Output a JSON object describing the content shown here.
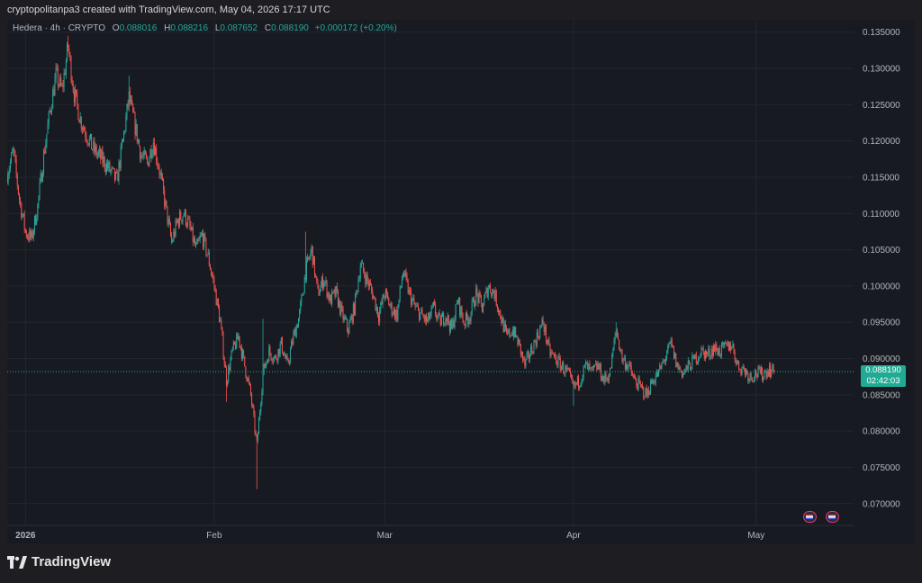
{
  "header": {
    "attribution": "cryptopolitanpa3 created with TradingView.com, May 04, 2026 17:17 UTC"
  },
  "legend": {
    "symbol": "Hedera · 4h · CRYPTO",
    "o_label": "O",
    "o_value": "0.088016",
    "h_label": "H",
    "h_value": "0.088216",
    "l_label": "L",
    "l_value": "0.087652",
    "c_label": "C",
    "c_value": "0.088190",
    "change": "+0.000172 (+0.20%)"
  },
  "price_tag": {
    "price": "0.088190",
    "countdown": "02:42:03"
  },
  "footer": {
    "brand": "TradingView"
  },
  "colors": {
    "up": "#26a69a",
    "down": "#ef5350",
    "background": "#171a21",
    "grid": "#23262f",
    "price_line": "#22ab94"
  },
  "chart_data": {
    "type": "candlestick",
    "symbol": "Hedera",
    "interval": "4h",
    "ylim": [
      0.067,
      0.1367
    ],
    "y_ticks": [
      "0.135000",
      "0.130000",
      "0.125000",
      "0.120000",
      "0.115000",
      "0.110000",
      "0.105000",
      "0.100000",
      "0.095000",
      "0.090000",
      "0.085000",
      "0.080000",
      "0.075000",
      "0.070000"
    ],
    "x_ticks": [
      {
        "label": "2026",
        "date": "2026-01-01"
      },
      {
        "label": "Feb",
        "date": "2026-02-01"
      },
      {
        "label": "Mar",
        "date": "2026-03-01"
      },
      {
        "label": "Apr",
        "date": "2026-04-01"
      },
      {
        "label": "May",
        "date": "2026-05-01"
      }
    ],
    "xlim": [
      "2025-12-29",
      "2026-05-17"
    ],
    "last_date": "2026-05-04",
    "last_price": 0.08819,
    "close_path": [
      {
        "date": "2025-12-29",
        "price": 0.1155
      },
      {
        "date": "2025-12-30",
        "price": 0.1185
      },
      {
        "date": "2025-12-31",
        "price": 0.112
      },
      {
        "date": "2026-01-01",
        "price": 0.1075
      },
      {
        "date": "2026-01-02",
        "price": 0.1065
      },
      {
        "date": "2026-01-03",
        "price": 0.111
      },
      {
        "date": "2026-01-04",
        "price": 0.118
      },
      {
        "date": "2026-01-05",
        "price": 0.124
      },
      {
        "date": "2026-01-06",
        "price": 0.129
      },
      {
        "date": "2026-01-07",
        "price": 0.127
      },
      {
        "date": "2026-01-08",
        "price": 0.133
      },
      {
        "date": "2026-01-09",
        "price": 0.1265
      },
      {
        "date": "2026-01-10",
        "price": 0.123
      },
      {
        "date": "2026-01-12",
        "price": 0.119
      },
      {
        "date": "2026-01-14",
        "price": 0.117
      },
      {
        "date": "2026-01-16",
        "price": 0.1145
      },
      {
        "date": "2026-01-17",
        "price": 0.12
      },
      {
        "date": "2026-01-18",
        "price": 0.126
      },
      {
        "date": "2026-01-19",
        "price": 0.122
      },
      {
        "date": "2026-01-20",
        "price": 0.118
      },
      {
        "date": "2026-01-21",
        "price": 0.117
      },
      {
        "date": "2026-01-22",
        "price": 0.12
      },
      {
        "date": "2026-01-23",
        "price": 0.116
      },
      {
        "date": "2026-01-24",
        "price": 0.111
      },
      {
        "date": "2026-01-25",
        "price": 0.106
      },
      {
        "date": "2026-01-26",
        "price": 0.109
      },
      {
        "date": "2026-01-27",
        "price": 0.11
      },
      {
        "date": "2026-01-28",
        "price": 0.108
      },
      {
        "date": "2026-01-29",
        "price": 0.105
      },
      {
        "date": "2026-01-30",
        "price": 0.107
      },
      {
        "date": "2026-01-31",
        "price": 0.104
      },
      {
        "date": "2026-02-01",
        "price": 0.1
      },
      {
        "date": "2026-02-02",
        "price": 0.095
      },
      {
        "date": "2026-02-03",
        "price": 0.087
      },
      {
        "date": "2026-02-04",
        "price": 0.091
      },
      {
        "date": "2026-02-05",
        "price": 0.093
      },
      {
        "date": "2026-02-06",
        "price": 0.089
      },
      {
        "date": "2026-02-07",
        "price": 0.085
      },
      {
        "date": "2026-02-08",
        "price": 0.078
      },
      {
        "date": "2026-02-09",
        "price": 0.088
      },
      {
        "date": "2026-02-10",
        "price": 0.091
      },
      {
        "date": "2026-02-11",
        "price": 0.09
      },
      {
        "date": "2026-02-12",
        "price": 0.092
      },
      {
        "date": "2026-02-13",
        "price": 0.089
      },
      {
        "date": "2026-02-14",
        "price": 0.093
      },
      {
        "date": "2026-02-15",
        "price": 0.096
      },
      {
        "date": "2026-02-16",
        "price": 0.102
      },
      {
        "date": "2026-02-17",
        "price": 0.105
      },
      {
        "date": "2026-02-18",
        "price": 0.099
      },
      {
        "date": "2026-02-19",
        "price": 0.101
      },
      {
        "date": "2026-02-20",
        "price": 0.098
      },
      {
        "date": "2026-02-21",
        "price": 0.099
      },
      {
        "date": "2026-02-22",
        "price": 0.096
      },
      {
        "date": "2026-02-23",
        "price": 0.094
      },
      {
        "date": "2026-02-24",
        "price": 0.097
      },
      {
        "date": "2026-02-25",
        "price": 0.103
      },
      {
        "date": "2026-02-26",
        "price": 0.101
      },
      {
        "date": "2026-02-27",
        "price": 0.099
      },
      {
        "date": "2026-02-28",
        "price": 0.096
      },
      {
        "date": "2026-03-01",
        "price": 0.099
      },
      {
        "date": "2026-03-02",
        "price": 0.097
      },
      {
        "date": "2026-03-03",
        "price": 0.096
      },
      {
        "date": "2026-03-04",
        "price": 0.102
      },
      {
        "date": "2026-03-05",
        "price": 0.099
      },
      {
        "date": "2026-03-06",
        "price": 0.097
      },
      {
        "date": "2026-03-07",
        "price": 0.096
      },
      {
        "date": "2026-03-08",
        "price": 0.095
      },
      {
        "date": "2026-03-09",
        "price": 0.097
      },
      {
        "date": "2026-03-10",
        "price": 0.095
      },
      {
        "date": "2026-03-11",
        "price": 0.096
      },
      {
        "date": "2026-03-12",
        "price": 0.094
      },
      {
        "date": "2026-03-13",
        "price": 0.098
      },
      {
        "date": "2026-03-14",
        "price": 0.095
      },
      {
        "date": "2026-03-15",
        "price": 0.096
      },
      {
        "date": "2026-03-16",
        "price": 0.099
      },
      {
        "date": "2026-03-17",
        "price": 0.097
      },
      {
        "date": "2026-03-18",
        "price": 0.1
      },
      {
        "date": "2026-03-19",
        "price": 0.099
      },
      {
        "date": "2026-03-20",
        "price": 0.096
      },
      {
        "date": "2026-03-21",
        "price": 0.093
      },
      {
        "date": "2026-03-22",
        "price": 0.094
      },
      {
        "date": "2026-03-23",
        "price": 0.092
      },
      {
        "date": "2026-03-24",
        "price": 0.089
      },
      {
        "date": "2026-03-25",
        "price": 0.091
      },
      {
        "date": "2026-03-26",
        "price": 0.093
      },
      {
        "date": "2026-03-27",
        "price": 0.095
      },
      {
        "date": "2026-03-28",
        "price": 0.091
      },
      {
        "date": "2026-03-29",
        "price": 0.09
      },
      {
        "date": "2026-03-30",
        "price": 0.089
      },
      {
        "date": "2026-03-31",
        "price": 0.088
      },
      {
        "date": "2026-04-01",
        "price": 0.086
      },
      {
        "date": "2026-04-02",
        "price": 0.087
      },
      {
        "date": "2026-04-03",
        "price": 0.089
      },
      {
        "date": "2026-04-04",
        "price": 0.088
      },
      {
        "date": "2026-04-05",
        "price": 0.089
      },
      {
        "date": "2026-04-06",
        "price": 0.087
      },
      {
        "date": "2026-04-07",
        "price": 0.088
      },
      {
        "date": "2026-04-08",
        "price": 0.094
      },
      {
        "date": "2026-04-09",
        "price": 0.09
      },
      {
        "date": "2026-04-10",
        "price": 0.089
      },
      {
        "date": "2026-04-11",
        "price": 0.087
      },
      {
        "date": "2026-04-12",
        "price": 0.086
      },
      {
        "date": "2026-04-13",
        "price": 0.085
      },
      {
        "date": "2026-04-14",
        "price": 0.087
      },
      {
        "date": "2026-04-15",
        "price": 0.088
      },
      {
        "date": "2026-04-16",
        "price": 0.09
      },
      {
        "date": "2026-04-17",
        "price": 0.092
      },
      {
        "date": "2026-04-18",
        "price": 0.089
      },
      {
        "date": "2026-04-19",
        "price": 0.088
      },
      {
        "date": "2026-04-20",
        "price": 0.089
      },
      {
        "date": "2026-04-21",
        "price": 0.09
      },
      {
        "date": "2026-04-22",
        "price": 0.091
      },
      {
        "date": "2026-04-23",
        "price": 0.0905
      },
      {
        "date": "2026-04-24",
        "price": 0.0915
      },
      {
        "date": "2026-04-25",
        "price": 0.091
      },
      {
        "date": "2026-04-26",
        "price": 0.0915
      },
      {
        "date": "2026-04-27",
        "price": 0.092
      },
      {
        "date": "2026-04-28",
        "price": 0.089
      },
      {
        "date": "2026-04-29",
        "price": 0.0885
      },
      {
        "date": "2026-04-30",
        "price": 0.0875
      },
      {
        "date": "2026-05-01",
        "price": 0.088
      },
      {
        "date": "2026-05-02",
        "price": 0.0878
      },
      {
        "date": "2026-05-03",
        "price": 0.0885
      },
      {
        "date": "2026-05-04",
        "price": 0.08819
      }
    ],
    "extreme_wicks": [
      {
        "date": "2026-01-08",
        "high": 0.1345
      },
      {
        "date": "2026-01-18",
        "high": 0.129
      },
      {
        "date": "2026-02-03",
        "low": 0.084
      },
      {
        "date": "2026-02-08",
        "low": 0.072
      },
      {
        "date": "2026-02-09",
        "high": 0.0955
      },
      {
        "date": "2026-02-16",
        "high": 0.1075
      },
      {
        "date": "2026-04-01",
        "low": 0.0835
      },
      {
        "date": "2026-04-08",
        "high": 0.095
      }
    ]
  }
}
